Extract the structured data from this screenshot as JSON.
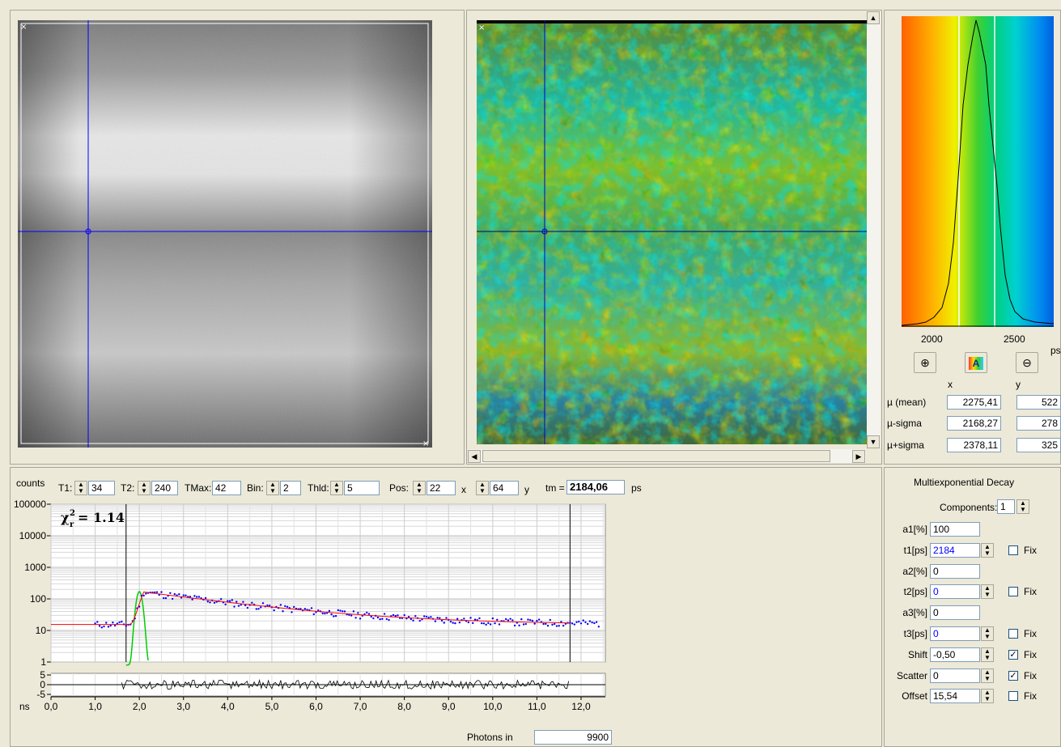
{
  "histogram": {
    "axis_ticks": [
      "2000",
      "2500"
    ],
    "unit": "ps",
    "columns": {
      "x": "x",
      "y": "y"
    },
    "stats": [
      {
        "label": "µ (mean)",
        "x": "2275,41",
        "y": "522"
      },
      {
        "label": "µ-sigma",
        "x": "2168,27",
        "y": "278"
      },
      {
        "label": "µ+sigma",
        "x": "2378,11",
        "y": "325"
      }
    ],
    "buttons": [
      "zoom-in-icon",
      "color-palette-icon",
      "zoom-out-icon"
    ]
  },
  "toolbar": {
    "counts_label": "counts",
    "t1_label": "T1:",
    "t1_value": "34",
    "t2_label": "T2:",
    "t2_value": "240",
    "tmax_label": "TMax:",
    "tmax_value": "42",
    "bin_label": "Bin:",
    "bin_value": "2",
    "thld_label": "Thld:",
    "thld_value": "5",
    "pos_label": "Pos:",
    "pos_x_value": "22",
    "x_label": "x",
    "pos_y_value": "64",
    "y_label": "y",
    "tm_label": "tm =",
    "tm_value": "2184,06",
    "tm_unit": "ps"
  },
  "decay_plot": {
    "y_ticks": [
      "100000",
      "10000",
      "1000",
      "100",
      "10",
      "1"
    ],
    "residual_ticks": [
      "5",
      "0",
      "-5"
    ],
    "x_unit": "ns",
    "x_ticks": [
      "0,0",
      "1,0",
      "2,0",
      "3,0",
      "4,0",
      "5,0",
      "6,0",
      "7,0",
      "8,0",
      "9,0",
      "10,0",
      "11,0",
      "12,0"
    ],
    "chi_label": "χ",
    "chi_sub": "r",
    "chi_sup": "2",
    "chi_value": "= 1.14",
    "photons_label": "Photons in",
    "photons_value": "9900"
  },
  "fit_panel": {
    "title": "Multiexponential Decay",
    "components_label": "Components:",
    "components_value": "1",
    "fix_label": "Fix",
    "rows": [
      {
        "label": "a1[%]",
        "value": "100"
      },
      {
        "label": "t1[ps]",
        "value": "2184",
        "fix": false
      },
      {
        "label": "a2[%]",
        "value": "0"
      },
      {
        "label": "t2[ps]",
        "value": "0",
        "fix": false
      },
      {
        "label": "a3[%]",
        "value": "0"
      },
      {
        "label": "t3[ps]",
        "value": "0",
        "fix": false
      },
      {
        "label": "Shift",
        "value": "-0,50",
        "fix": true
      },
      {
        "label": "Scatter",
        "value": "0",
        "fix": true
      },
      {
        "label": "Offset",
        "value": "15,54",
        "fix": false
      }
    ]
  },
  "colors": {
    "background": "#ece9d8",
    "cursor": "#0000ff",
    "fit_line": "#ff0000",
    "data_points": "#0000ff",
    "irf": "#00cc00",
    "blue_value_text": "#0000ff"
  }
}
